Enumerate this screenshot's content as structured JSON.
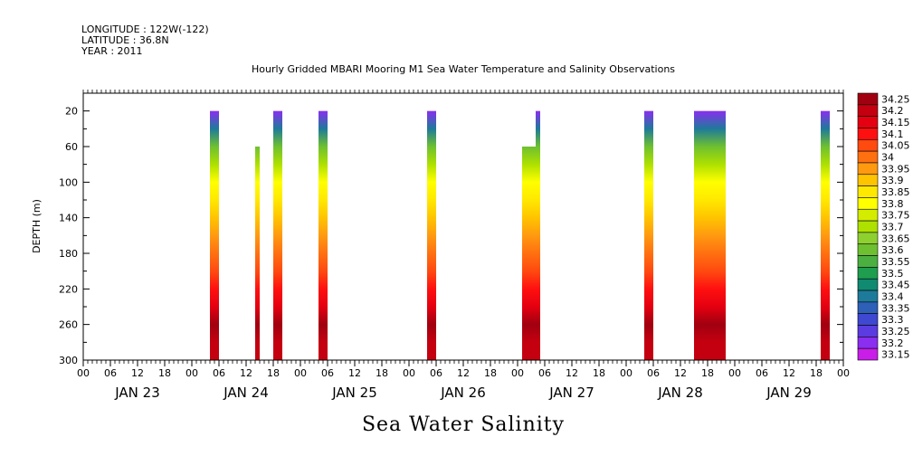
{
  "header": {
    "longitude": "LONGITUDE : 122W(-122)",
    "latitude": "LATITUDE : 36.8N",
    "year": "YEAR : 2011"
  },
  "chart_data": {
    "type": "heatmap",
    "title": "Hourly Gridded MBARI Mooring M1 Sea Water Temperature and Salinity Observations",
    "bottom_title": "Sea Water Salinity",
    "ylabel": "DEPTH (m)",
    "xlabel": "",
    "x_unit": "hours since JAN 23 00",
    "xlim": [
      0,
      168
    ],
    "ylim": [
      300,
      0
    ],
    "y_ticks": [
      20,
      60,
      100,
      140,
      180,
      220,
      260,
      300
    ],
    "x_tick_labels": [
      "00",
      "06",
      "12",
      "18",
      "00",
      "06",
      "12",
      "18",
      "00",
      "06",
      "12",
      "18",
      "00",
      "06",
      "12",
      "18",
      "00",
      "06",
      "12",
      "18",
      "00",
      "06",
      "12",
      "18",
      "00",
      "06",
      "12",
      "18",
      "00"
    ],
    "day_labels": [
      "JAN 23",
      "JAN 24",
      "JAN 25",
      "JAN 26",
      "JAN 27",
      "JAN 28",
      "JAN 29"
    ],
    "colorbar": {
      "levels": [
        "34.25",
        "34.2",
        "34.15",
        "34.1",
        "34.05",
        "34",
        "33.95",
        "33.9",
        "33.85",
        "33.8",
        "33.75",
        "33.7",
        "33.65",
        "33.6",
        "33.55",
        "33.5",
        "33.45",
        "33.4",
        "33.35",
        "33.3",
        "33.25",
        "33.2",
        "33.15"
      ],
      "colors": [
        "#a00010",
        "#c40010",
        "#e40010",
        "#ff1010",
        "#ff4a10",
        "#ff7010",
        "#ff9a10",
        "#ffc400",
        "#ffe800",
        "#ffff00",
        "#d4ec00",
        "#aee000",
        "#8ed030",
        "#6ec030",
        "#4cb040",
        "#1e9e4e",
        "#108a70",
        "#1e7a9a",
        "#2e60b8",
        "#3e48d0",
        "#5a3ce0",
        "#8a2ef0",
        "#c81ee8"
      ]
    },
    "depth_profile": [
      {
        "depth": 20,
        "value": 33.22
      },
      {
        "depth": 40,
        "value": 33.42
      },
      {
        "depth": 60,
        "value": 33.6
      },
      {
        "depth": 80,
        "value": 33.72
      },
      {
        "depth": 100,
        "value": 33.8
      },
      {
        "depth": 120,
        "value": 33.86
      },
      {
        "depth": 140,
        "value": 33.92
      },
      {
        "depth": 160,
        "value": 33.97
      },
      {
        "depth": 180,
        "value": 34.0
      },
      {
        "depth": 200,
        "value": 34.06
      },
      {
        "depth": 220,
        "value": 34.12
      },
      {
        "depth": 240,
        "value": 34.17
      },
      {
        "depth": 260,
        "value": 34.23
      },
      {
        "depth": 280,
        "value": 34.2
      },
      {
        "depth": 300,
        "value": 34.18
      }
    ],
    "data_columns": [
      {
        "start": 28,
        "end": 30,
        "top_depth": 20
      },
      {
        "start": 38,
        "end": 39,
        "top_depth": 60
      },
      {
        "start": 42,
        "end": 44,
        "top_depth": 20
      },
      {
        "start": 52,
        "end": 54,
        "top_depth": 20
      },
      {
        "start": 76,
        "end": 78,
        "top_depth": 20
      },
      {
        "start": 97,
        "end": 100,
        "top_depth": 60
      },
      {
        "start": 100,
        "end": 101,
        "top_depth": 20
      },
      {
        "start": 124,
        "end": 126,
        "top_depth": 20
      },
      {
        "start": 135,
        "end": 142,
        "top_depth": 20
      },
      {
        "start": 163,
        "end": 165,
        "top_depth": 20
      }
    ]
  }
}
